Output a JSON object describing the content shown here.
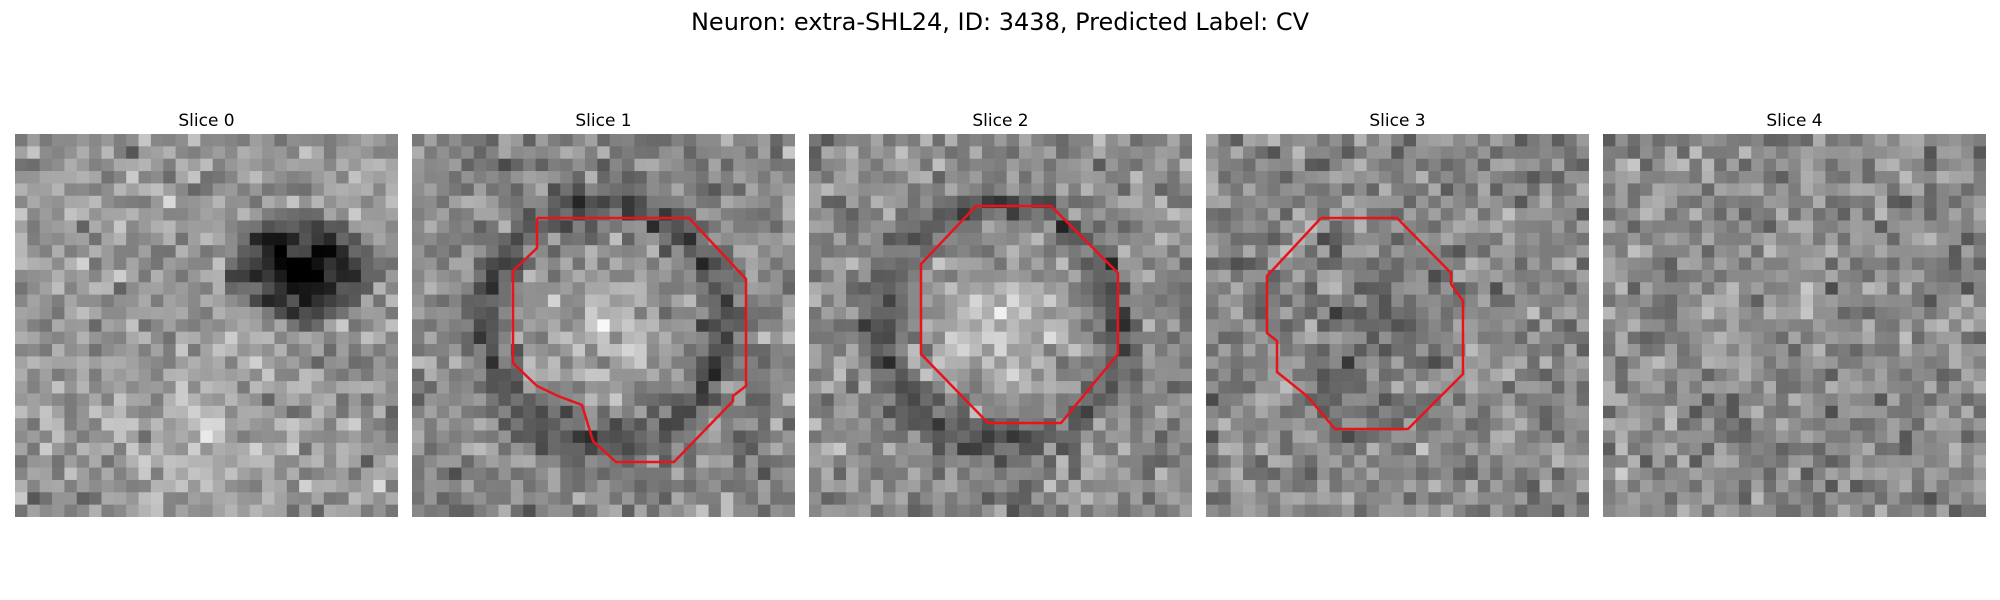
{
  "figure": {
    "title": "Neuron: extra-SHL24, ID: 3438, Predicted Label: CV"
  },
  "panels": [
    {
      "title": "Slice 0",
      "has_contour": false,
      "texture": {
        "seed": 11,
        "base": 150,
        "feature": "dark-blob-upper-right"
      }
    },
    {
      "title": "Slice 1",
      "has_contour": true,
      "texture": {
        "seed": 23,
        "base": 135,
        "feature": "bright-disk-dark-ring"
      }
    },
    {
      "title": "Slice 2",
      "has_contour": true,
      "texture": {
        "seed": 37,
        "base": 140,
        "feature": "bright-disk-dark-ring"
      }
    },
    {
      "title": "Slice 3",
      "has_contour": true,
      "texture": {
        "seed": 41,
        "base": 135,
        "feature": "dark-center"
      }
    },
    {
      "title": "Slice 4",
      "has_contour": false,
      "texture": {
        "seed": 53,
        "base": 140,
        "feature": "noise"
      }
    }
  ],
  "style": {
    "contour_color": "#e8141c",
    "colormap": "gray"
  }
}
